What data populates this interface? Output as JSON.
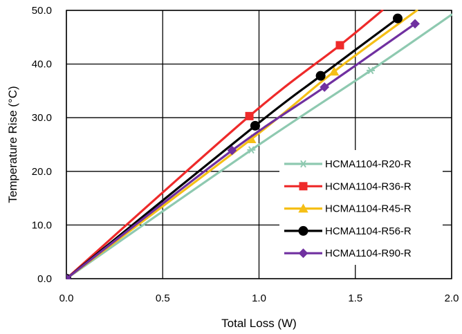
{
  "chart_data": {
    "type": "line",
    "title": "",
    "xlabel": "Total Loss (W)",
    "ylabel": "Temperature Rise (°C)",
    "xlim": [
      0,
      2.0
    ],
    "ylim": [
      0,
      50
    ],
    "xticks": [
      "0.0",
      "0.5",
      "1.0",
      "1.5",
      "2.0"
    ],
    "yticks": [
      "0.0",
      "10.0",
      "20.0",
      "30.0",
      "40.0",
      "50.0"
    ],
    "grid": true,
    "legend_position": "bottom-right",
    "series": [
      {
        "name": "HCMA1104-R20-R",
        "color": "#8ec9b0",
        "marker": "asterisk",
        "x": [
          0,
          0.96,
          1.58
        ],
        "y": [
          0,
          24.0,
          38.8
        ],
        "curve_end": [
          2.0,
          49.2
        ]
      },
      {
        "name": "HCMA1104-R36-R",
        "color": "#ee2a2a",
        "marker": "square",
        "x": [
          0,
          0.95,
          1.42
        ],
        "y": [
          0,
          30.3,
          43.5
        ],
        "curve_end": [
          1.64,
          50.0
        ]
      },
      {
        "name": "HCMA1104-R45-R",
        "color": "#f5bf16",
        "marker": "triangle",
        "x": [
          0,
          0.96,
          1.39
        ],
        "y": [
          0,
          26.0,
          38.6
        ],
        "curve_end": [
          1.82,
          50.0
        ]
      },
      {
        "name": "HCMA1104-R56-R",
        "color": "#000000",
        "marker": "circle",
        "x": [
          0,
          0.98,
          1.32,
          1.72
        ],
        "y": [
          0,
          28.5,
          37.8,
          48.5
        ],
        "curve_end": null
      },
      {
        "name": "HCMA1104-R90-R",
        "color": "#7030a0",
        "marker": "diamond",
        "x": [
          0,
          0.86,
          1.34,
          1.81
        ],
        "y": [
          0,
          23.9,
          35.7,
          47.5
        ],
        "curve_end": null
      }
    ]
  }
}
